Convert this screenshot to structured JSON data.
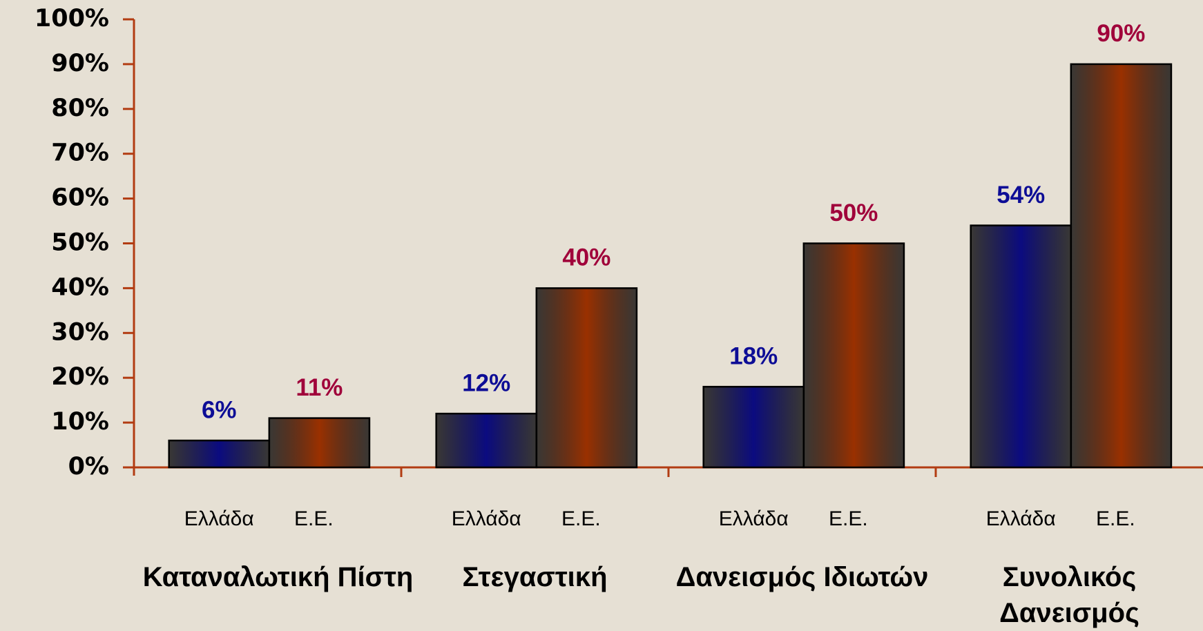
{
  "chart_data": {
    "type": "bar",
    "categories": [
      "Καταναλωτική Πίστη",
      "Στεγαστική",
      "Δανεισμός Ιδιωτών",
      "Συνολικός Δανεισμός"
    ],
    "series": [
      {
        "name": "Ελλάδα",
        "color": "#0b0b80",
        "label_color": "#0d0d96",
        "values": [
          6,
          12,
          18,
          54
        ],
        "value_labels": [
          "6%",
          "12%",
          "18%",
          "54%"
        ]
      },
      {
        "name": "Ε.Ε.",
        "color": "#9a3000",
        "label_color": "#a0003a",
        "values": [
          11,
          40,
          50,
          90
        ],
        "value_labels": [
          "11%",
          "40%",
          "50%",
          "90%"
        ]
      }
    ],
    "ylim": [
      0,
      100
    ],
    "yticks": [
      {
        "value": 0,
        "label": "0%"
      },
      {
        "value": 10,
        "label": "10%"
      },
      {
        "value": 20,
        "label": "20%"
      },
      {
        "value": 30,
        "label": "30%"
      },
      {
        "value": 40,
        "label": "40%"
      },
      {
        "value": 50,
        "label": "50%"
      },
      {
        "value": 60,
        "label": "60%"
      },
      {
        "value": 70,
        "label": "70%"
      },
      {
        "value": 80,
        "label": "80%"
      },
      {
        "value": 90,
        "label": "90%"
      },
      {
        "value": 100,
        "label": "100%"
      }
    ]
  }
}
